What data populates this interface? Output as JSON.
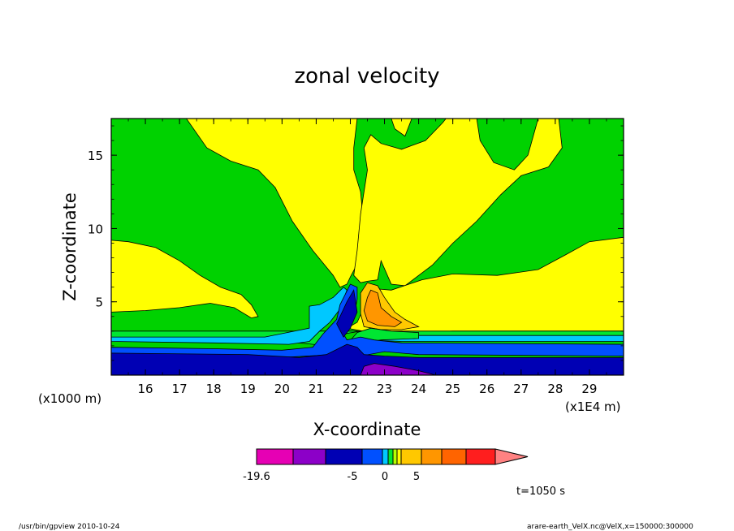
{
  "chart_data": {
    "type": "heatmap",
    "title": "zonal velocity",
    "xlabel": "X-coordinate",
    "ylabel": "Z-coordinate",
    "x_scale_label": "(x1E4 m)",
    "y_scale_label": "(x1000 m)",
    "xlim": [
      15,
      30
    ],
    "ylim": [
      0,
      17.5
    ],
    "x_ticks": [
      16,
      17,
      18,
      19,
      20,
      21,
      22,
      23,
      24,
      25,
      26,
      27,
      28,
      29
    ],
    "y_ticks": [
      5,
      10,
      15
    ],
    "colorbar": {
      "colors": [
        "#e600b4",
        "#8c00c8",
        "#0000b4",
        "#0050ff",
        "#00c8ff",
        "#00e632",
        "#b4ff00",
        "#ffff00",
        "#ffc800",
        "#ff9600",
        "#ff6400",
        "#ff1e1e",
        "#ff8282"
      ],
      "tick_labels": [
        "-19.6",
        "-5",
        "0",
        "5"
      ]
    },
    "regions": [
      {
        "color": "#00d200",
        "level": "0 to 1",
        "polys": [
          [
            [
              15,
              0
            ],
            [
              30,
              0
            ],
            [
              30,
              17.5
            ],
            [
              15,
              17.5
            ]
          ]
        ]
      },
      {
        "color": "#ffff00",
        "level": "1 to 2",
        "polys": [
          [
            [
              15,
              9.2
            ],
            [
              15.5,
              9.1
            ],
            [
              16.3,
              8.7
            ],
            [
              17,
              7.8
            ],
            [
              17.6,
              6.8
            ],
            [
              18.2,
              6
            ],
            [
              18.8,
              5.5
            ],
            [
              19.1,
              4.8
            ],
            [
              19.3,
              4
            ],
            [
              19.1,
              3.9
            ],
            [
              18.6,
              4.6
            ],
            [
              17.9,
              4.9
            ],
            [
              17,
              4.6
            ],
            [
              16,
              4.4
            ],
            [
              15,
              4.3
            ]
          ],
          [
            [
              17.2,
              17.5
            ],
            [
              17.8,
              15.5
            ],
            [
              18.5,
              14.6
            ],
            [
              19.3,
              14
            ],
            [
              19.8,
              12.8
            ],
            [
              20.3,
              10.5
            ],
            [
              20.9,
              8.5
            ],
            [
              21.5,
              6.8
            ],
            [
              21.7,
              6
            ],
            [
              21.9,
              6.2
            ],
            [
              22,
              6.7
            ],
            [
              22.3,
              8
            ],
            [
              22.4,
              10
            ],
            [
              22.3,
              12.5
            ],
            [
              22.1,
              14
            ],
            [
              22.1,
              15.5
            ],
            [
              22.2,
              17.5
            ]
          ],
          [
            [
              23.2,
              17.5
            ],
            [
              23.3,
              16.8
            ],
            [
              23.6,
              16.3
            ],
            [
              23.8,
              17.5
            ]
          ],
          [
            [
              22.1,
              6.8
            ],
            [
              22.2,
              8.5
            ],
            [
              22.3,
              11
            ],
            [
              22.5,
              14
            ],
            [
              22.4,
              15.5
            ],
            [
              22.6,
              16.4
            ],
            [
              22.9,
              15.8
            ],
            [
              23.5,
              15.4
            ],
            [
              24.2,
              16
            ],
            [
              24.7,
              17.2
            ],
            [
              24.8,
              17.5
            ],
            [
              25.7,
              17.5
            ],
            [
              25.8,
              16
            ],
            [
              26.2,
              14.5
            ],
            [
              26.8,
              14
            ],
            [
              27.2,
              15
            ],
            [
              27.5,
              17.5
            ],
            [
              28.1,
              17.5
            ],
            [
              28.2,
              15.5
            ],
            [
              27.8,
              14.2
            ],
            [
              27,
              13.6
            ],
            [
              26.4,
              12.3
            ],
            [
              25.7,
              10.5
            ],
            [
              25,
              9
            ],
            [
              24.4,
              7.5
            ],
            [
              23.6,
              6.1
            ],
            [
              23.2,
              6.2
            ],
            [
              22.9,
              7.8
            ],
            [
              22.8,
              6.5
            ],
            [
              22.5,
              6.4
            ],
            [
              22.3,
              6.3
            ]
          ],
          [
            [
              21.9,
              3.2
            ],
            [
              22.2,
              3.6
            ],
            [
              22.4,
              4.6
            ],
            [
              22.7,
              5.9
            ],
            [
              23.2,
              5.8
            ],
            [
              24.1,
              6.5
            ],
            [
              25,
              6.9
            ],
            [
              26.3,
              6.8
            ],
            [
              27.5,
              7.2
            ],
            [
              28.3,
              8.2
            ],
            [
              29,
              9.1
            ],
            [
              30,
              9.4
            ],
            [
              30,
              3
            ],
            [
              27,
              3
            ],
            [
              25,
              3
            ],
            [
              23.5,
              2.9
            ],
            [
              22.6,
              2.9
            ]
          ]
        ]
      },
      {
        "color": "#00e632",
        "level": "-1 to 0",
        "polys": [
          [
            [
              15,
              2.5
            ],
            [
              16,
              2.4
            ],
            [
              19,
              2.3
            ],
            [
              20.5,
              2.2
            ],
            [
              21.3,
              2
            ],
            [
              21.8,
              2.8
            ],
            [
              22.3,
              3
            ],
            [
              22.6,
              2.7
            ],
            [
              23.2,
              2.6
            ],
            [
              24,
              2.6
            ],
            [
              30,
              2.6
            ],
            [
              30,
              3
            ],
            [
              15,
              3
            ]
          ]
        ]
      },
      {
        "color": "#00c8ff",
        "level": "-2 to -1",
        "polys": [
          [
            [
              15,
              2.3
            ],
            [
              18,
              2.2
            ],
            [
              20.2,
              2.1
            ],
            [
              20.8,
              2.3
            ],
            [
              21.1,
              3
            ],
            [
              21.4,
              3.6
            ],
            [
              21.7,
              4.5
            ],
            [
              21.9,
              5.8
            ],
            [
              21.8,
              6
            ],
            [
              21.5,
              5.3
            ],
            [
              21.1,
              4.8
            ],
            [
              20.8,
              4.7
            ],
            [
              20.8,
              3.2
            ],
            [
              19.5,
              2.6
            ],
            [
              15,
              2.6
            ]
          ],
          [
            [
              22.4,
              2.4
            ],
            [
              23.5,
              2.3
            ],
            [
              30,
              2.3
            ],
            [
              30,
              2.7
            ],
            [
              24,
              2.7
            ],
            [
              22.8,
              2.8
            ]
          ]
        ]
      },
      {
        "color": "#ffc800",
        "level": "2 to 4",
        "polys": [
          [
            [
              22.3,
              5.6
            ],
            [
              22.5,
              6.3
            ],
            [
              22.8,
              6.1
            ],
            [
              23,
              5.3
            ],
            [
              23.3,
              4.3
            ],
            [
              23.6,
              3.8
            ],
            [
              24,
              3.3
            ],
            [
              23.5,
              3.1
            ],
            [
              22.9,
              3.1
            ],
            [
              22.4,
              3.3
            ],
            [
              22.3,
              4.2
            ]
          ]
        ]
      },
      {
        "color": "#ff9600",
        "level": "4 to 6",
        "polys": [
          [
            [
              22.5,
              5.3
            ],
            [
              22.6,
              5.8
            ],
            [
              22.8,
              5.6
            ],
            [
              22.9,
              4.6
            ],
            [
              23.2,
              4
            ],
            [
              23.5,
              3.6
            ],
            [
              23.3,
              3.3
            ],
            [
              22.8,
              3.4
            ],
            [
              22.5,
              3.7
            ],
            [
              22.4,
              4.4
            ]
          ]
        ]
      },
      {
        "color": "#00e632",
        "level": "-1 to 0",
        "polys": [
          [
            [
              21.9,
              2.1
            ],
            [
              22.2,
              2.9
            ],
            [
              22.6,
              3.2
            ],
            [
              23.2,
              3
            ],
            [
              24,
              2.9
            ],
            [
              24,
              2.5
            ],
            [
              22.9,
              2.4
            ],
            [
              22.4,
              2.2
            ]
          ]
        ]
      },
      {
        "color": "#0050ff",
        "level": "-4 to -2",
        "polys": [
          [
            [
              15,
              1.9
            ],
            [
              18,
              1.8
            ],
            [
              20,
              1.7
            ],
            [
              20.9,
              1.9
            ],
            [
              21.2,
              2.8
            ],
            [
              21.6,
              3.8
            ],
            [
              21.7,
              4.8
            ],
            [
              22,
              6.2
            ],
            [
              22.2,
              6
            ],
            [
              22.2,
              5.2
            ],
            [
              22.1,
              3.8
            ],
            [
              21.8,
              2.8
            ],
            [
              21.9,
              2.4
            ],
            [
              22.3,
              2.6
            ],
            [
              22.7,
              2.4
            ],
            [
              23.5,
              2.2
            ],
            [
              30,
              2.1
            ],
            [
              30,
              1.3
            ],
            [
              24,
              1.4
            ],
            [
              23,
              1.6
            ],
            [
              22.3,
              1.3
            ],
            [
              21.5,
              1.4
            ],
            [
              20,
              1.2
            ],
            [
              15,
              1.2
            ]
          ]
        ]
      },
      {
        "color": "#0000b4",
        "level": "-10 to -4",
        "polys": [
          [
            [
              15,
              1.5
            ],
            [
              19,
              1.4
            ],
            [
              20.5,
              1.2
            ],
            [
              21.3,
              1.4
            ],
            [
              21.9,
              2.1
            ],
            [
              22.2,
              1.9
            ],
            [
              22.4,
              1.4
            ],
            [
              23,
              1.3
            ],
            [
              24,
              1.2
            ],
            [
              30,
              1.2
            ],
            [
              30,
              0
            ],
            [
              15,
              0
            ]
          ]
        ]
      },
      {
        "color": "#0000b4",
        "level": "-10 to -4",
        "polys": [
          [
            [
              21.6,
              3.5
            ],
            [
              21.9,
              5
            ],
            [
              22.1,
              5.8
            ],
            [
              22.2,
              4.3
            ],
            [
              22,
              3.2
            ],
            [
              21.8,
              2.6
            ]
          ]
        ]
      },
      {
        "color": "#8c00c8",
        "level": "-15 to -10",
        "polys": [
          [
            [
              22.3,
              0
            ],
            [
              22.4,
              0.6
            ],
            [
              22.7,
              0.8
            ],
            [
              23.3,
              0.6
            ],
            [
              24,
              0.3
            ],
            [
              24.5,
              0
            ]
          ]
        ]
      }
    ]
  },
  "time_label": "t=1050 s",
  "footer_left": "/usr/bin/gpview   2010-10-24",
  "footer_right": "arare-earth_VelX.nc@VelX,x=150000:300000"
}
